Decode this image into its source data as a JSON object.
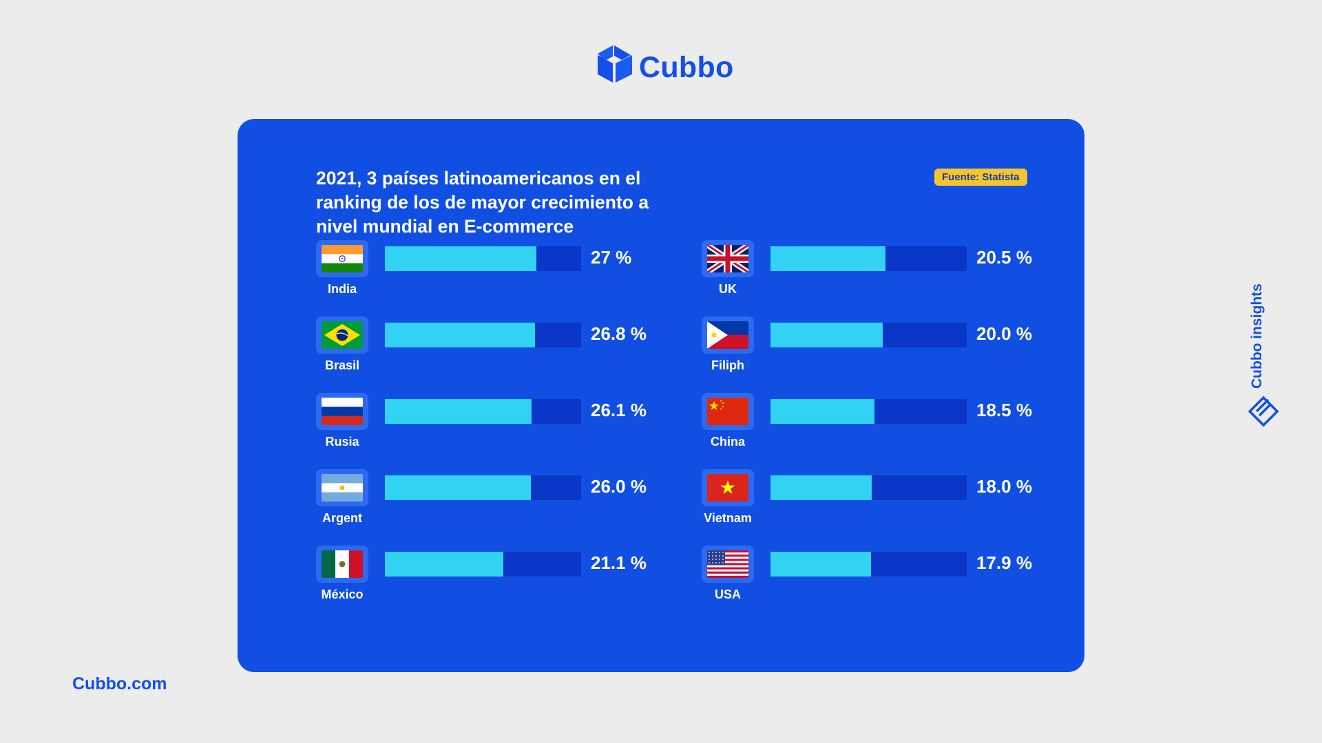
{
  "brand": {
    "name": "Cubbo",
    "website": "Cubbo.com",
    "tagline": "Cubbo insights"
  },
  "colors": {
    "brand_blue": "#1450e6",
    "card_bg": "#114fe3",
    "bar_fill": "#32d2f2",
    "bar_track": "#0a37c7",
    "badge_bg": "#f7c42b",
    "page_bg": "#ececec"
  },
  "source_badge": "Fuente: Statista",
  "chart_data": {
    "type": "bar",
    "orientation": "horizontal",
    "title": "2021, 3 países latinoamericanos en el ranking de los de mayor crecimiento a nivel mundial en E-commerce",
    "unit": "%",
    "xlim": [
      0,
      35
    ],
    "categories": [
      "India",
      "Brasil",
      "Rusia",
      "Argent",
      "México",
      "UK",
      "Filiph",
      "China",
      "Vietnam",
      "USA"
    ],
    "values": [
      27,
      26.8,
      26.1,
      26.0,
      21.1,
      20.5,
      20.0,
      18.5,
      18.0,
      17.9
    ],
    "value_labels": [
      "27 %",
      "26.8 %",
      "26.1 %",
      "26.0 %",
      "21.1 %",
      "20.5 %",
      "20.0 %",
      "18.5 %",
      "18.0 %",
      "17.9 %"
    ],
    "flags": [
      "india-flag-icon",
      "brazil-flag-icon",
      "russia-flag-icon",
      "argentina-flag-icon",
      "mexico-flag-icon",
      "uk-flag-icon",
      "philippines-flag-icon",
      "china-flag-icon",
      "vietnam-flag-icon",
      "usa-flag-icon"
    ],
    "layout": "two columns of five"
  }
}
